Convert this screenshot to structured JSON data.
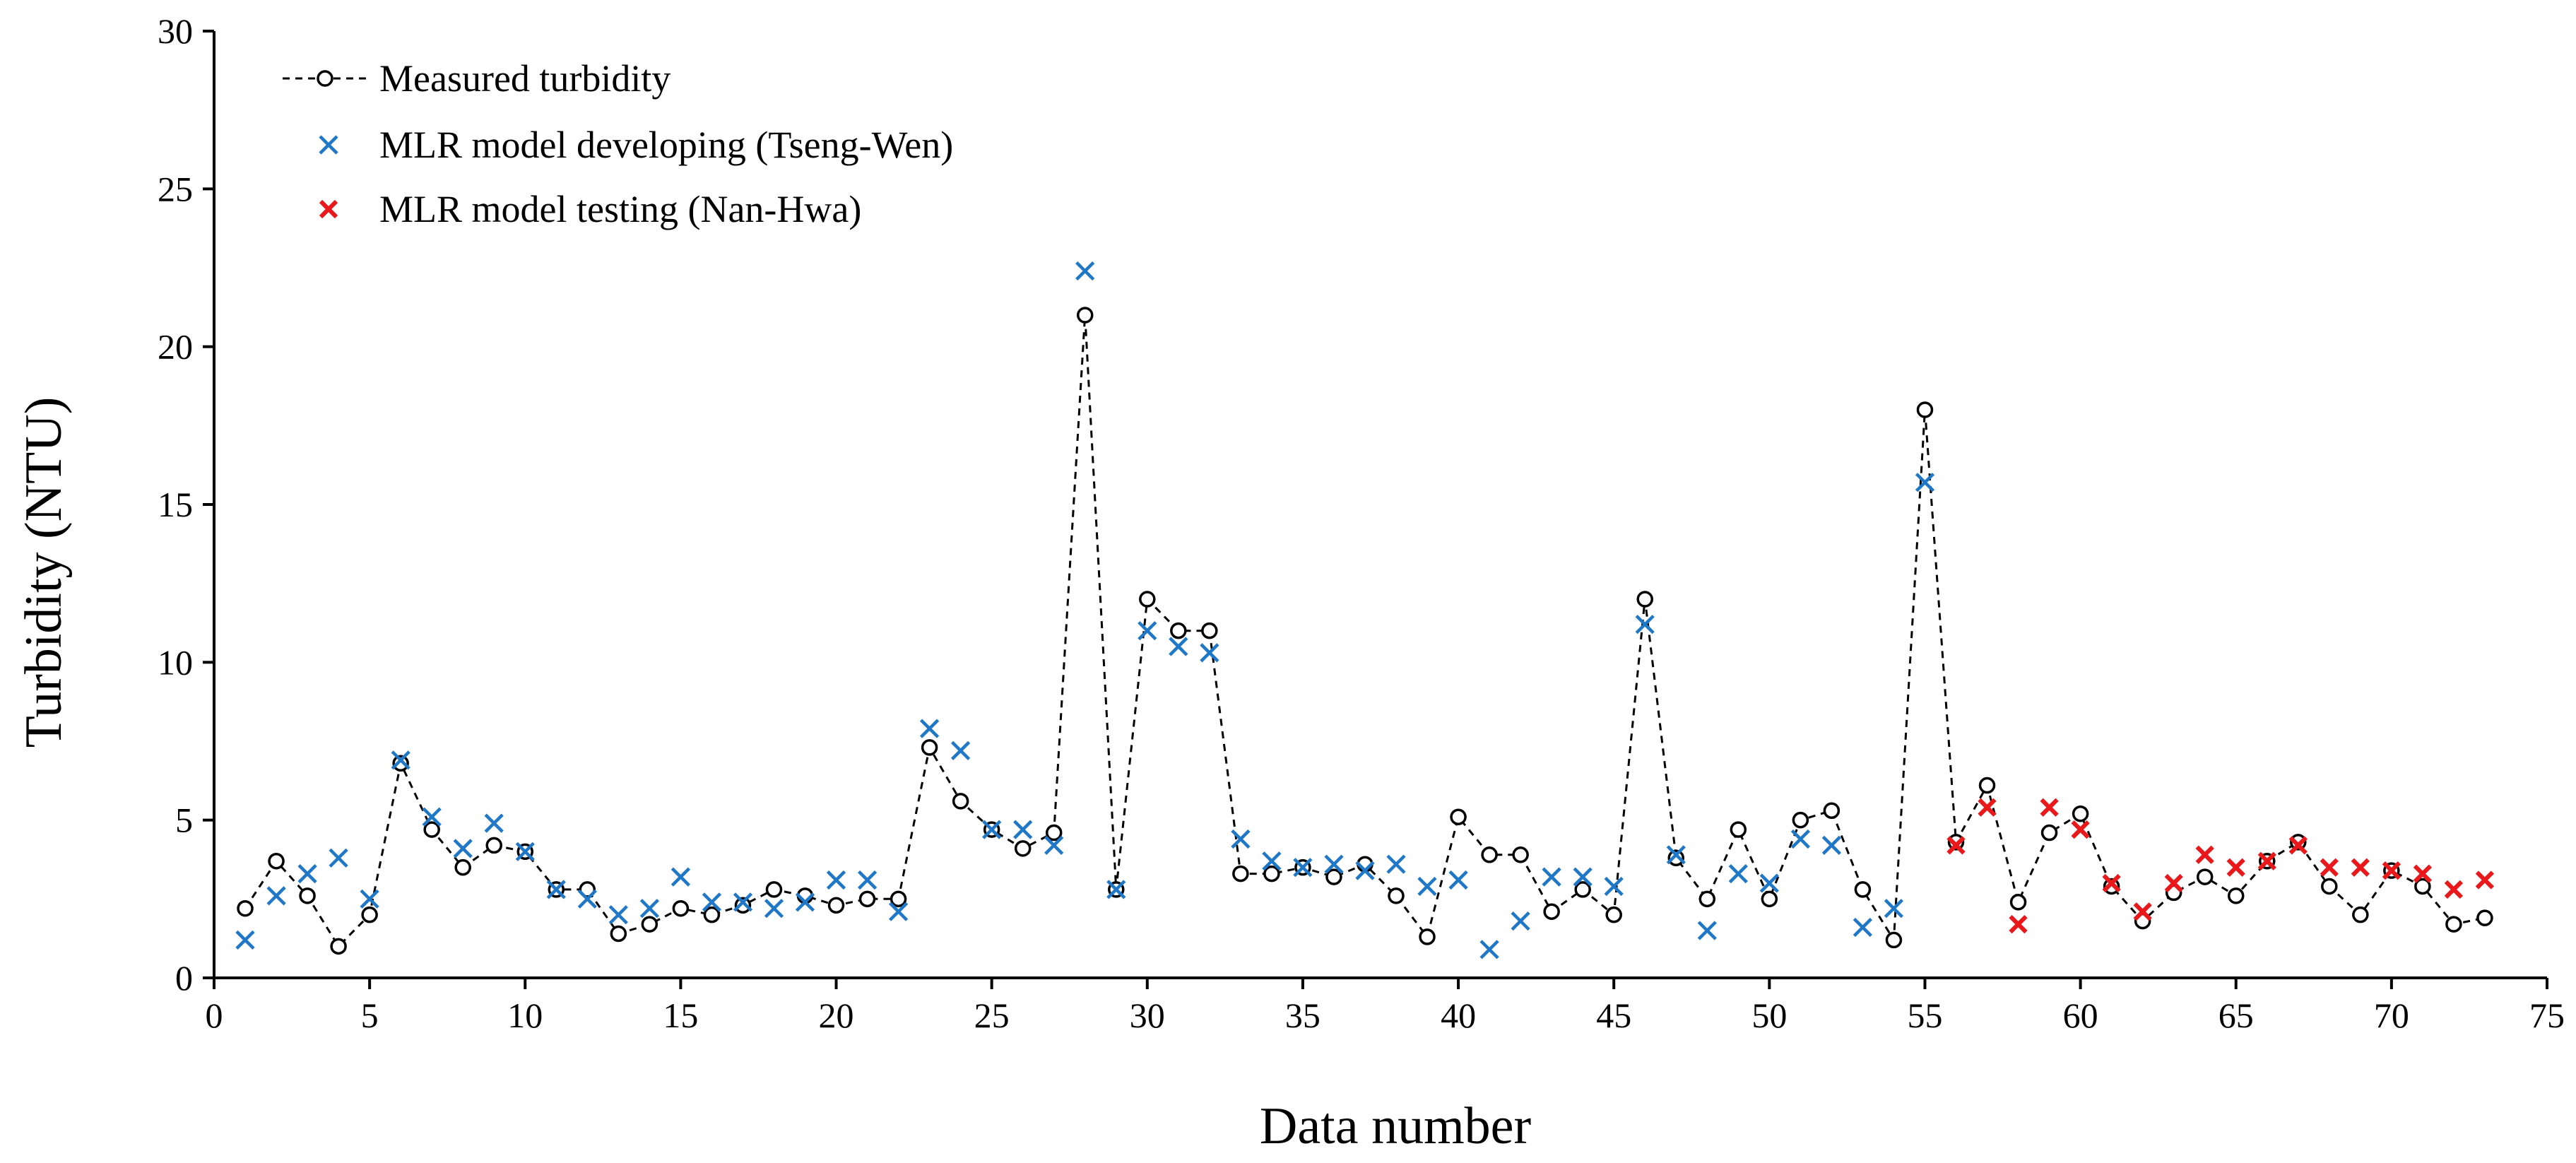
{
  "chart_data": {
    "type": "line",
    "title": "",
    "xlabel": "Data number",
    "ylabel": "Turbidity (NTU)",
    "xlim": [
      0,
      75
    ],
    "ylim": [
      0,
      30
    ],
    "xticks": [
      0,
      5,
      10,
      15,
      20,
      25,
      30,
      35,
      40,
      45,
      50,
      55,
      60,
      65,
      70,
      75
    ],
    "yticks": [
      0,
      5,
      10,
      15,
      20,
      25,
      30
    ],
    "grid": false,
    "legend_position": "top-left",
    "series": [
      {
        "name": "Measured turbidity",
        "style": "dashed-line-open-circle",
        "color": "#000000",
        "x": [
          1,
          2,
          3,
          4,
          5,
          6,
          7,
          8,
          9,
          10,
          11,
          12,
          13,
          14,
          15,
          16,
          17,
          18,
          19,
          20,
          21,
          22,
          23,
          24,
          25,
          26,
          27,
          28,
          29,
          30,
          31,
          32,
          33,
          34,
          35,
          36,
          37,
          38,
          39,
          40,
          41,
          42,
          43,
          44,
          45,
          46,
          47,
          48,
          49,
          50,
          51,
          52,
          53,
          54,
          55,
          56,
          57,
          58,
          59,
          60,
          61,
          62,
          63,
          64,
          65,
          66,
          67,
          68,
          69,
          70,
          71,
          72,
          73
        ],
        "values": [
          2.2,
          3.7,
          2.6,
          1.0,
          2.0,
          6.8,
          4.7,
          3.5,
          4.2,
          4.0,
          2.8,
          2.8,
          1.4,
          1.7,
          2.2,
          2.0,
          2.3,
          2.8,
          2.6,
          2.3,
          2.5,
          2.5,
          7.3,
          5.6,
          4.7,
          4.1,
          4.6,
          21.0,
          2.8,
          12.0,
          11.0,
          11.0,
          3.3,
          3.3,
          3.5,
          3.2,
          3.6,
          2.6,
          1.3,
          5.1,
          3.9,
          3.9,
          2.1,
          2.8,
          2.0,
          12.0,
          3.8,
          2.5,
          4.7,
          2.5,
          5.0,
          5.3,
          2.8,
          1.2,
          18.0,
          4.3,
          6.1,
          2.4,
          4.6,
          5.2,
          2.9,
          1.8,
          2.7,
          3.2,
          2.6,
          3.7,
          4.3,
          2.9,
          2.0,
          3.4,
          2.9,
          1.7,
          1.9
        ]
      },
      {
        "name": "MLR model developing (Tseng-Wen)",
        "style": "x-marker",
        "color": "#1f77c8",
        "x": [
          1,
          2,
          3,
          4,
          5,
          6,
          7,
          8,
          9,
          10,
          11,
          12,
          13,
          14,
          15,
          16,
          17,
          18,
          19,
          20,
          21,
          22,
          23,
          24,
          25,
          26,
          27,
          28,
          29,
          30,
          31,
          32,
          33,
          34,
          35,
          36,
          37,
          38,
          39,
          40,
          41,
          42,
          43,
          44,
          45,
          46,
          47,
          48,
          49,
          50,
          51,
          52,
          53,
          54,
          55
        ],
        "values": [
          1.2,
          2.6,
          3.3,
          3.8,
          2.5,
          6.9,
          5.1,
          4.1,
          4.9,
          4.0,
          2.8,
          2.5,
          2.0,
          2.2,
          3.2,
          2.4,
          2.4,
          2.2,
          2.4,
          3.1,
          3.1,
          2.1,
          7.9,
          7.2,
          4.7,
          4.7,
          4.2,
          22.4,
          2.8,
          11.0,
          10.5,
          10.3,
          4.4,
          3.7,
          3.5,
          3.6,
          3.4,
          3.6,
          2.9,
          3.1,
          0.9,
          1.8,
          3.2,
          3.2,
          2.9,
          11.2,
          3.9,
          1.5,
          3.3,
          3.0,
          4.4,
          4.2,
          1.6,
          2.2,
          15.7
        ]
      },
      {
        "name": "MLR model testing (Nan-Hwa)",
        "style": "x-marker",
        "color": "#e8181b",
        "x": [
          56,
          57,
          58,
          59,
          60,
          61,
          62,
          63,
          64,
          65,
          66,
          67,
          68,
          69,
          70,
          71,
          72,
          73
        ],
        "values": [
          4.2,
          5.4,
          1.7,
          5.4,
          4.7,
          3.0,
          2.1,
          3.0,
          3.9,
          3.5,
          3.7,
          4.2,
          3.5,
          3.5,
          3.4,
          3.3,
          2.8,
          3.1
        ]
      }
    ]
  }
}
